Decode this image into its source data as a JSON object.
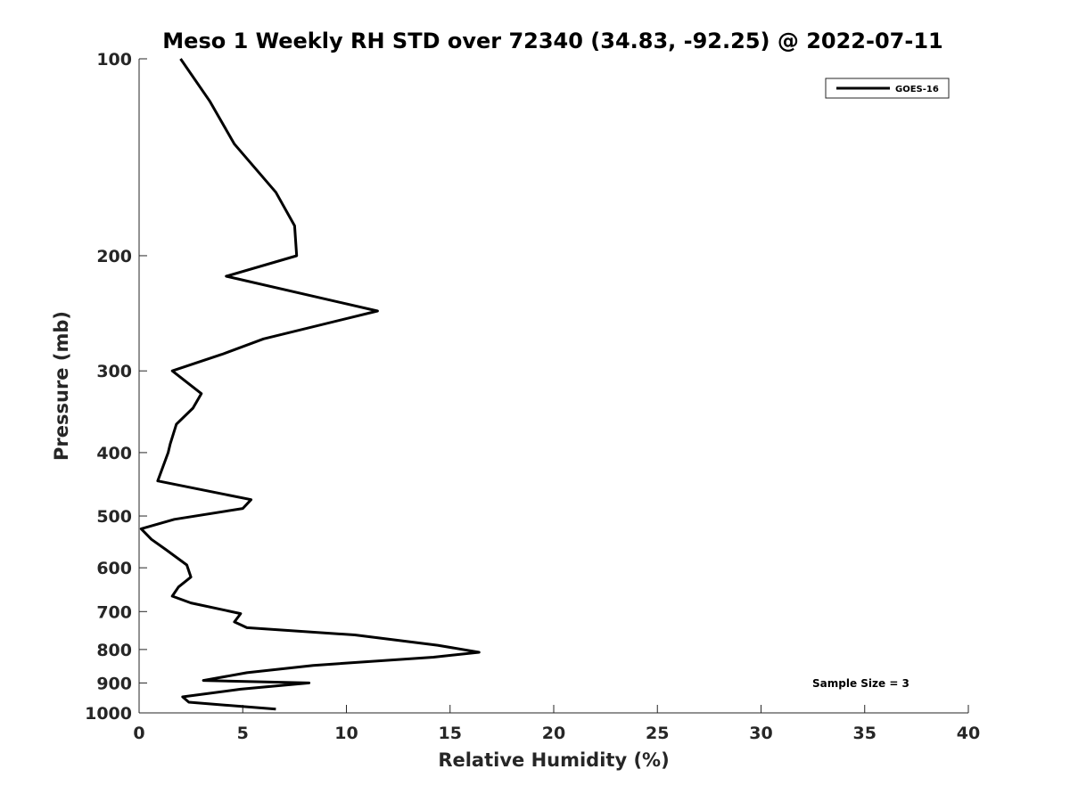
{
  "chart_data": {
    "type": "line",
    "title": "Meso 1 Weekly RH STD over 72340 (34.83, -92.25) @ 2022-07-11",
    "xlabel": "Relative Humidity (%)",
    "ylabel": "Pressure (mb)",
    "xlim": [
      0,
      40
    ],
    "ylim": [
      100,
      1000
    ],
    "y_scale": "log",
    "y_reversed": true,
    "x_ticks": [
      0,
      5,
      10,
      15,
      20,
      25,
      30,
      35,
      40
    ],
    "y_ticks": [
      100,
      200,
      300,
      400,
      500,
      600,
      700,
      800,
      900,
      1000
    ],
    "grid": false,
    "legend_position": "top-right",
    "series": [
      {
        "name": "GOES-16",
        "color": "#000000",
        "points": [
          [
            2.0,
            100
          ],
          [
            3.4,
            116
          ],
          [
            4.6,
            135
          ],
          [
            6.6,
            160
          ],
          [
            7.5,
            180
          ],
          [
            7.6,
            200
          ],
          [
            4.2,
            215
          ],
          [
            11.5,
            243
          ],
          [
            6.0,
            268
          ],
          [
            4.0,
            283
          ],
          [
            1.6,
            300
          ],
          [
            3.0,
            325
          ],
          [
            2.6,
            342
          ],
          [
            1.8,
            362
          ],
          [
            1.5,
            388
          ],
          [
            1.4,
            400
          ],
          [
            0.9,
            442
          ],
          [
            5.4,
            472
          ],
          [
            5.0,
            487
          ],
          [
            1.7,
            506
          ],
          [
            0.1,
            523
          ],
          [
            0.6,
            543
          ],
          [
            1.3,
            563
          ],
          [
            2.3,
            594
          ],
          [
            2.5,
            620
          ],
          [
            1.9,
            642
          ],
          [
            1.6,
            663
          ],
          [
            2.5,
            679
          ],
          [
            4.9,
            705
          ],
          [
            4.6,
            726
          ],
          [
            5.2,
            741
          ],
          [
            10.4,
            760
          ],
          [
            14.4,
            788
          ],
          [
            16.4,
            808
          ],
          [
            14.2,
            822
          ],
          [
            8.4,
            846
          ],
          [
            5.2,
            868
          ],
          [
            3.1,
            892
          ],
          [
            8.2,
            900
          ],
          [
            4.9,
            920
          ],
          [
            2.1,
            945
          ],
          [
            2.4,
            963
          ],
          [
            6.6,
            987
          ]
        ]
      }
    ],
    "annotations": [
      "Sample Size = 3"
    ]
  }
}
